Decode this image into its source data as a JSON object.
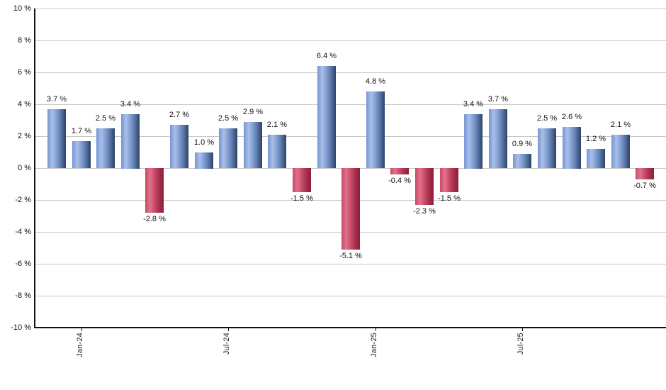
{
  "chart_data": {
    "type": "bar",
    "title": "",
    "xlabel": "",
    "ylabel": "",
    "grid": true,
    "legend": false,
    "ylim": [
      -10,
      10
    ],
    "y_ticks": [
      10,
      8,
      6,
      4,
      2,
      0,
      -2,
      -4,
      -6,
      -8,
      -10
    ],
    "y_tick_labels": [
      "10 %",
      "8 %",
      "6 %",
      "4 %",
      "2 %",
      "0 %",
      "-2 %",
      "-4 %",
      "-6 %",
      "-8 %",
      "-10 %"
    ],
    "x_ticks": [
      {
        "label": "Jan-24",
        "bar_index": 1
      },
      {
        "label": "Jul-24",
        "bar_index": 7
      },
      {
        "label": "Jan-25",
        "bar_index": 13
      },
      {
        "label": "Jul-25",
        "bar_index": 19
      }
    ],
    "values": [
      3.7,
      1.7,
      2.5,
      3.4,
      -2.8,
      2.7,
      1.0,
      2.5,
      2.9,
      2.1,
      -1.5,
      6.4,
      -5.1,
      4.8,
      -0.4,
      -2.3,
      -1.5,
      3.4,
      3.7,
      0.9,
      2.5,
      2.6,
      1.2,
      2.1,
      -0.7
    ],
    "value_labels": [
      "3.7 %",
      "1.7 %",
      "2.5 %",
      "3.4 %",
      "-2.8 %",
      "2.7 %",
      "1.0 %",
      "2.5 %",
      "2.9 %",
      "2.1 %",
      "-1.5 %",
      "6.4 %",
      "-5.1 %",
      "4.8 %",
      "-0.4 %",
      "-2.3 %",
      "-1.5 %",
      "3.4 %",
      "3.7 %",
      "0.9 %",
      "2.5 %",
      "2.6 %",
      "1.2 %",
      "2.1 %",
      "-0.7 %"
    ],
    "colors": {
      "positive_bar_left": "#7494d4",
      "positive_bar_highlight": "#a9bfe7",
      "positive_bar_edge": "#2c4168",
      "negative_bar_left": "#c84a66",
      "negative_bar_highlight": "#e2718b",
      "negative_bar_edge": "#8c1c38",
      "gridline": "#c8c8c8",
      "axis": "#111111",
      "text": "#111111",
      "background": "#ffffff"
    }
  }
}
